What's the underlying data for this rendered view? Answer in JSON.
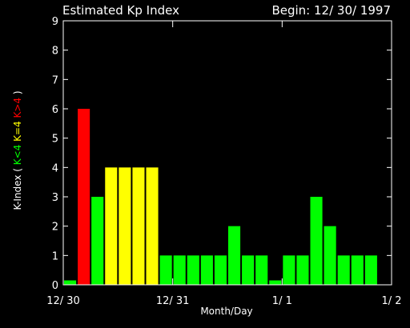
{
  "chart_data": {
    "type": "bar",
    "title": "Estimated Kp Index",
    "begin_label": "Begin: 12/ 30/ 1997",
    "xlabel": "Month/Day",
    "ylabel": {
      "prefix": "K-Index ( ",
      "parts": [
        {
          "text": "K<4",
          "color": "#00ff00"
        },
        {
          "text": "K=4",
          "color": "#ffff00"
        },
        {
          "text": "K>4",
          "color": "#ff0000"
        }
      ],
      "suffix": " )"
    },
    "ylim": [
      0,
      9
    ],
    "yticks": [
      0,
      1,
      2,
      3,
      4,
      5,
      6,
      7,
      8,
      9
    ],
    "xticks": [
      "12/ 30",
      "12/ 31",
      "1/ 1",
      "1/ 2"
    ],
    "bars_per_day": 8,
    "days": 3,
    "values": [
      0.15,
      6,
      3,
      4,
      4,
      4,
      4,
      1,
      1,
      1,
      1,
      1,
      2,
      1,
      1,
      0.15,
      1,
      1,
      3,
      2,
      1,
      1,
      1
    ],
    "colors": {
      "low": "#00ff00",
      "mid": "#ffff00",
      "high": "#ff0000",
      "axis": "#ffffff"
    }
  }
}
